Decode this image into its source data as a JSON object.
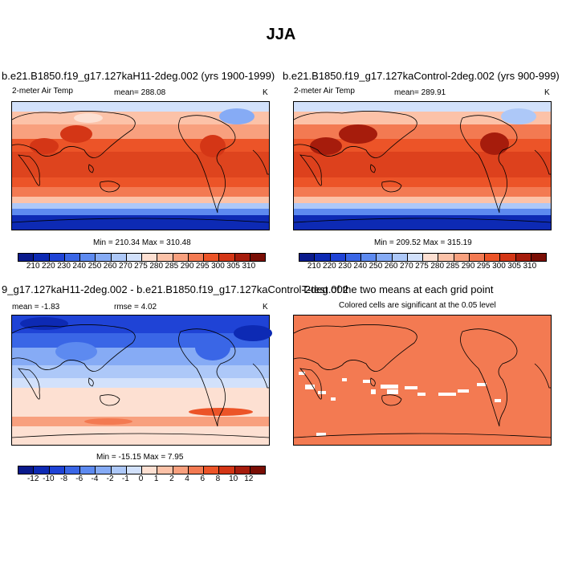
{
  "title": "JJA",
  "panels": {
    "top_left": {
      "case": "b.e21.B1850.f19_g17.127kaH11-2deg.002 (yrs 1900-1999)",
      "variable": "2-meter Air Temp",
      "mean_label": "mean= 288.08",
      "units": "K",
      "minmax": "Min = 210.34 Max = 310.48"
    },
    "top_right": {
      "case": "b.e21.B1850.f19_g17.127kaControl-2deg.002 (yrs 900-999)",
      "variable": "2-meter Air Temp",
      "mean_label": "mean= 289.91",
      "units": "K",
      "minmax": "Min = 209.52 Max = 315.19"
    },
    "bottom_left": {
      "case": "9_g17.127kaH11-2deg.002 - b.e21.B1850.f19_g17.127kaControl-2deg.002",
      "mean_label": "mean =  -1.83",
      "rmse_label": "rmse =   4.02",
      "units": "K",
      "minmax": "Min = -15.15 Max =  7.95"
    },
    "bottom_right": {
      "title": "T-test of the two means at each grid point",
      "subtitle": "Colored cells are significant at the 0.05 level"
    }
  },
  "colorbars": {
    "temperature": {
      "labels": [
        "210",
        "220",
        "230",
        "240",
        "250",
        "260",
        "270",
        "275",
        "280",
        "285",
        "290",
        "295",
        "300",
        "305",
        "310"
      ],
      "colors": [
        "#0a1a8c",
        "#0d2ab4",
        "#1f43d6",
        "#3a66e6",
        "#5d8af0",
        "#86abf5",
        "#adc8f8",
        "#d2e1fb",
        "#fde0d2",
        "#fcc2a8",
        "#f8a07e",
        "#f37a52",
        "#ec5428",
        "#d43616",
        "#a61c0c",
        "#7a0e05"
      ]
    },
    "difference": {
      "labels": [
        "-12",
        "-10",
        "-8",
        "-6",
        "-4",
        "-2",
        "-1",
        "0",
        "1",
        "2",
        "4",
        "6",
        "8",
        "10",
        "12"
      ],
      "colors": [
        "#0a1a8c",
        "#0d2ab4",
        "#1f43d6",
        "#3a66e6",
        "#5d8af0",
        "#86abf5",
        "#adc8f8",
        "#d2e1fb",
        "#fde0d2",
        "#fcc2a8",
        "#f8a07e",
        "#f37a52",
        "#ec5428",
        "#d43616",
        "#a61c0c",
        "#7a0e05"
      ]
    }
  }
}
